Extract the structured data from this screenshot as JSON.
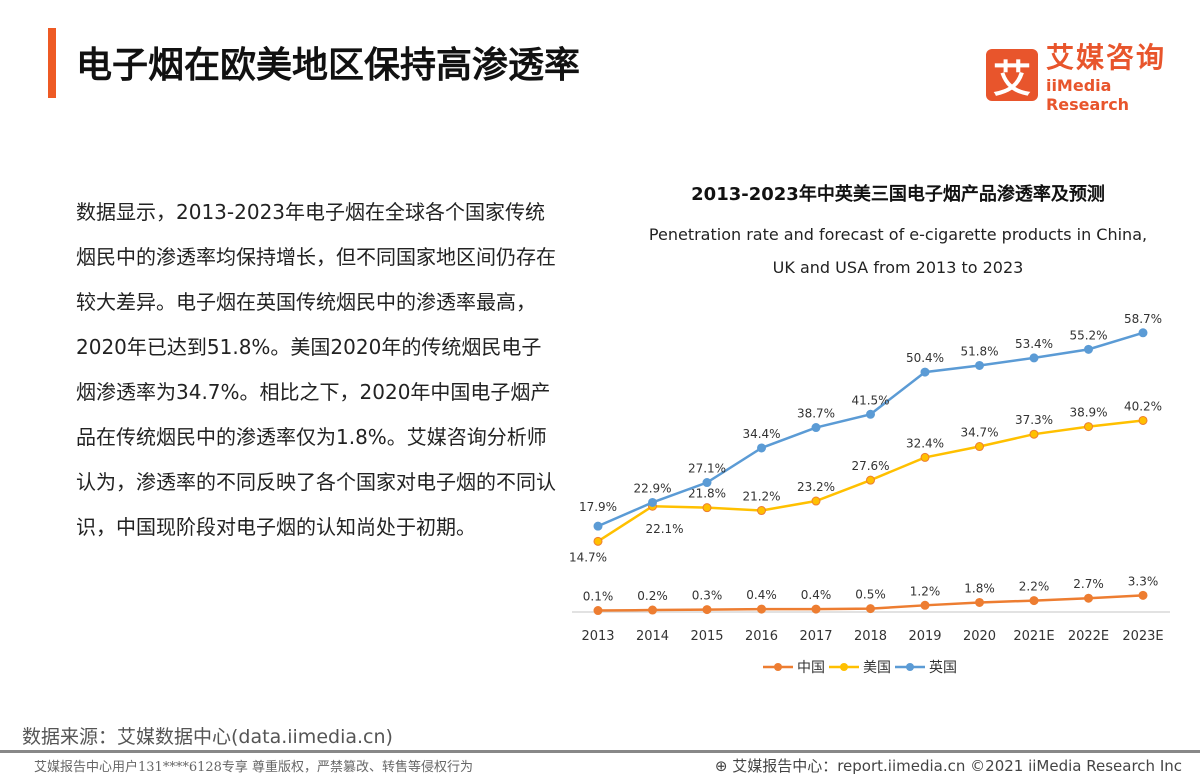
{
  "header": {
    "title": "电子烟在欧美地区保持高渗透率",
    "logo_cn": "艾媒咨询",
    "logo_en": "iiMedia Research",
    "logo_mark": "艾"
  },
  "body_text": "数据显示，2013-2023年电子烟在全球各个国家传统烟民中的渗透率均保持增长，但不同国家地区间仍存在较大差异。电子烟在英国传统烟民中的渗透率最高，2020年已达到51.8%。美国2020年的传统烟民电子烟渗透率为34.7%。相比之下，2020年中国电子烟产品在传统烟民中的渗透率仅为1.8%。艾媒咨询分析师认为，渗透率的不同反映了各个国家对电子烟的不同认识，中国现阶段对电子烟的认知尚处于初期。",
  "source": "数据来源：艾媒数据中心(data.iimedia.cn)",
  "footer": {
    "left": "艾媒报告中心用户131****6128专享 尊重版权，严禁篡改、转售等侵权行为",
    "right": "艾媒报告中心：report.iimedia.cn  ©2021  iiMedia Research  Inc"
  },
  "colors": {
    "accent": "#ee5a24",
    "china": "#ed7d31",
    "usa": "#ffc000",
    "uk": "#5b9bd5"
  },
  "chart_data": {
    "type": "line",
    "title": "2013-2023年中英美三国电子烟产品渗透率及预测",
    "subtitle_line1": "Penetration rate and forecast of e-cigarette products in China,",
    "subtitle_line2": "UK and USA from 2013 to 2023",
    "categories": [
      "2013",
      "2014",
      "2015",
      "2016",
      "2017",
      "2018",
      "2019",
      "2020",
      "2021E",
      "2022E",
      "2023E"
    ],
    "unit": "%",
    "legend_position": "bottom",
    "grid": false,
    "series": [
      {
        "name": "中国",
        "color": "#ed7d31",
        "values": [
          0.1,
          0.2,
          0.3,
          0.4,
          0.4,
          0.5,
          1.2,
          1.8,
          2.2,
          2.7,
          3.3
        ]
      },
      {
        "name": "美国",
        "color": "#ffc000",
        "values": [
          14.7,
          22.1,
          21.8,
          21.2,
          23.2,
          27.6,
          32.4,
          34.7,
          37.3,
          38.9,
          40.2
        ]
      },
      {
        "name": "英国",
        "color": "#5b9bd5",
        "values": [
          17.9,
          22.9,
          27.1,
          34.4,
          38.7,
          41.5,
          50.4,
          51.8,
          53.4,
          55.2,
          58.7
        ]
      }
    ]
  }
}
